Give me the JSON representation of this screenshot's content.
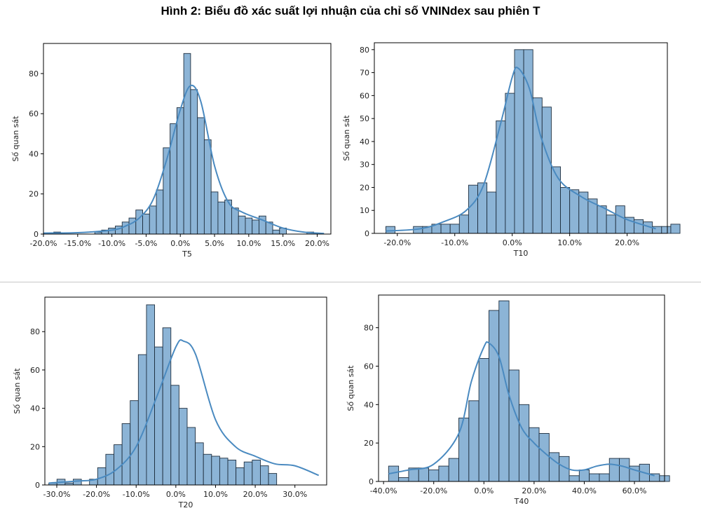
{
  "title": "Hình 2: Biểu đồ xác suất lợi nhuận của chỉ số VNINdex sau phiên T",
  "colors": {
    "bar_fill": "#8cb4d6",
    "bar_edge": "#1f2f3f",
    "kde": "#4a8ac0",
    "axis": "#000000"
  },
  "chart_data": [
    {
      "type": "bar",
      "xlabel": "T5",
      "ylabel": "Số quan sát",
      "xlim": [
        -0.2,
        0.22
      ],
      "ylim": [
        0,
        95
      ],
      "xticks": [
        -0.2,
        -0.15,
        -0.1,
        -0.05,
        0.0,
        0.05,
        0.1,
        0.15,
        0.2
      ],
      "xtick_labels": [
        "-20.0%",
        "-15.0%",
        "-10.0%",
        "-5.0%",
        "0.0%",
        "5.0%",
        "10.0%",
        "15.0%",
        "20.0%"
      ],
      "yticks": [
        0,
        20,
        40,
        60,
        80
      ],
      "bin_start": -0.185,
      "bin_width": 0.01,
      "counts": [
        1,
        0,
        0,
        0,
        0,
        0,
        1,
        2,
        3,
        4,
        6,
        8,
        12,
        10,
        14,
        22,
        43,
        55,
        63,
        90,
        72,
        58,
        47,
        21,
        16,
        17,
        13,
        9,
        8,
        7,
        9,
        6,
        2,
        3,
        0,
        0,
        0,
        1
      ],
      "kde_x": [
        -0.2,
        -0.15,
        -0.1,
        -0.08,
        -0.06,
        -0.04,
        -0.02,
        0.0,
        0.015,
        0.03,
        0.05,
        0.07,
        0.09,
        0.12,
        0.15,
        0.18,
        0.21
      ],
      "kde_y": [
        0.5,
        0.7,
        2,
        4,
        8,
        17,
        37,
        62,
        74,
        66,
        34,
        16,
        11,
        7,
        3,
        1,
        0.3
      ]
    },
    {
      "type": "bar",
      "xlabel": "T10",
      "ylabel": "Số quan sát",
      "xlim": [
        -0.24,
        0.27
      ],
      "ylim": [
        0,
        83
      ],
      "xticks": [
        -0.2,
        -0.1,
        0.0,
        0.1,
        0.2
      ],
      "xtick_labels": [
        "-20.0%",
        "-10.0%",
        "0.0%",
        "10.0%",
        "20.0%"
      ],
      "yticks": [
        0,
        10,
        20,
        30,
        40,
        50,
        60,
        70,
        80
      ],
      "bin_start": -0.22,
      "bin_width": 0.016,
      "counts": [
        3,
        0,
        0,
        3,
        3,
        4,
        4,
        4,
        8,
        21,
        22,
        18,
        49,
        61,
        80,
        80,
        59,
        55,
        29,
        20,
        19,
        18,
        15,
        12,
        8,
        12,
        7,
        6,
        5,
        3,
        3,
        4
      ],
      "kde_x": [
        -0.22,
        -0.16,
        -0.12,
        -0.08,
        -0.05,
        -0.02,
        0.0,
        0.01,
        0.03,
        0.05,
        0.08,
        0.12,
        0.16,
        0.2,
        0.25
      ],
      "kde_y": [
        1,
        2,
        5,
        10,
        21,
        48,
        68,
        72,
        63,
        42,
        24,
        16,
        11,
        6,
        2
      ]
    },
    {
      "type": "bar",
      "xlabel": "T20",
      "ylabel": "Số quan sát",
      "xlim": [
        -0.33,
        0.38
      ],
      "ylim": [
        0,
        98
      ],
      "xticks": [
        -0.3,
        -0.2,
        -0.1,
        0.0,
        0.1,
        0.2,
        0.3
      ],
      "xtick_labels": [
        "-30.0%",
        "-20.0%",
        "-10.0%",
        "0.0%",
        "10.0%",
        "20.0%",
        "30.0%"
      ],
      "yticks": [
        0,
        20,
        40,
        60,
        80
      ],
      "bin_start": -0.32,
      "bin_width": 0.0205,
      "counts": [
        1,
        3,
        1,
        3,
        0,
        3,
        9,
        16,
        21,
        32,
        44,
        68,
        94,
        72,
        82,
        52,
        40,
        30,
        22,
        16,
        15,
        14,
        13,
        9,
        12,
        13,
        10,
        6
      ],
      "kde_x": [
        -0.32,
        -0.25,
        -0.2,
        -0.15,
        -0.1,
        -0.05,
        0.0,
        0.02,
        0.05,
        0.1,
        0.15,
        0.2,
        0.25,
        0.3,
        0.36
      ],
      "kde_y": [
        1,
        2,
        3,
        8,
        20,
        45,
        72,
        75,
        68,
        34,
        20,
        15,
        11,
        10,
        5
      ]
    },
    {
      "type": "bar",
      "xlabel": "T40",
      "ylabel": "Số quan sát",
      "xlim": [
        -0.42,
        0.72
      ],
      "ylim": [
        0,
        97
      ],
      "xticks": [
        -0.4,
        -0.2,
        0.0,
        0.2,
        0.4,
        0.6
      ],
      "xtick_labels": [
        "-40.0%",
        "-20.0%",
        "0.0%",
        "20.0%",
        "40.0%",
        "60.0%"
      ],
      "yticks": [
        0,
        20,
        40,
        60,
        80
      ],
      "bin_start": -0.38,
      "bin_width": 0.04,
      "counts": [
        8,
        2,
        7,
        7,
        6,
        8,
        12,
        33,
        42,
        64,
        89,
        94,
        58,
        40,
        28,
        25,
        15,
        13,
        3,
        6,
        4,
        4,
        12,
        12,
        8,
        9,
        4,
        3
      ],
      "kde_x": [
        -0.38,
        -0.3,
        -0.2,
        -0.1,
        -0.05,
        0.0,
        0.02,
        0.06,
        0.1,
        0.15,
        0.2,
        0.25,
        0.3,
        0.35,
        0.4,
        0.45,
        0.5,
        0.55,
        0.6,
        0.68
      ],
      "kde_y": [
        4,
        6,
        9,
        25,
        52,
        70,
        72,
        65,
        45,
        28,
        20,
        14,
        9,
        6,
        6,
        8,
        9,
        8,
        6,
        3
      ]
    }
  ]
}
